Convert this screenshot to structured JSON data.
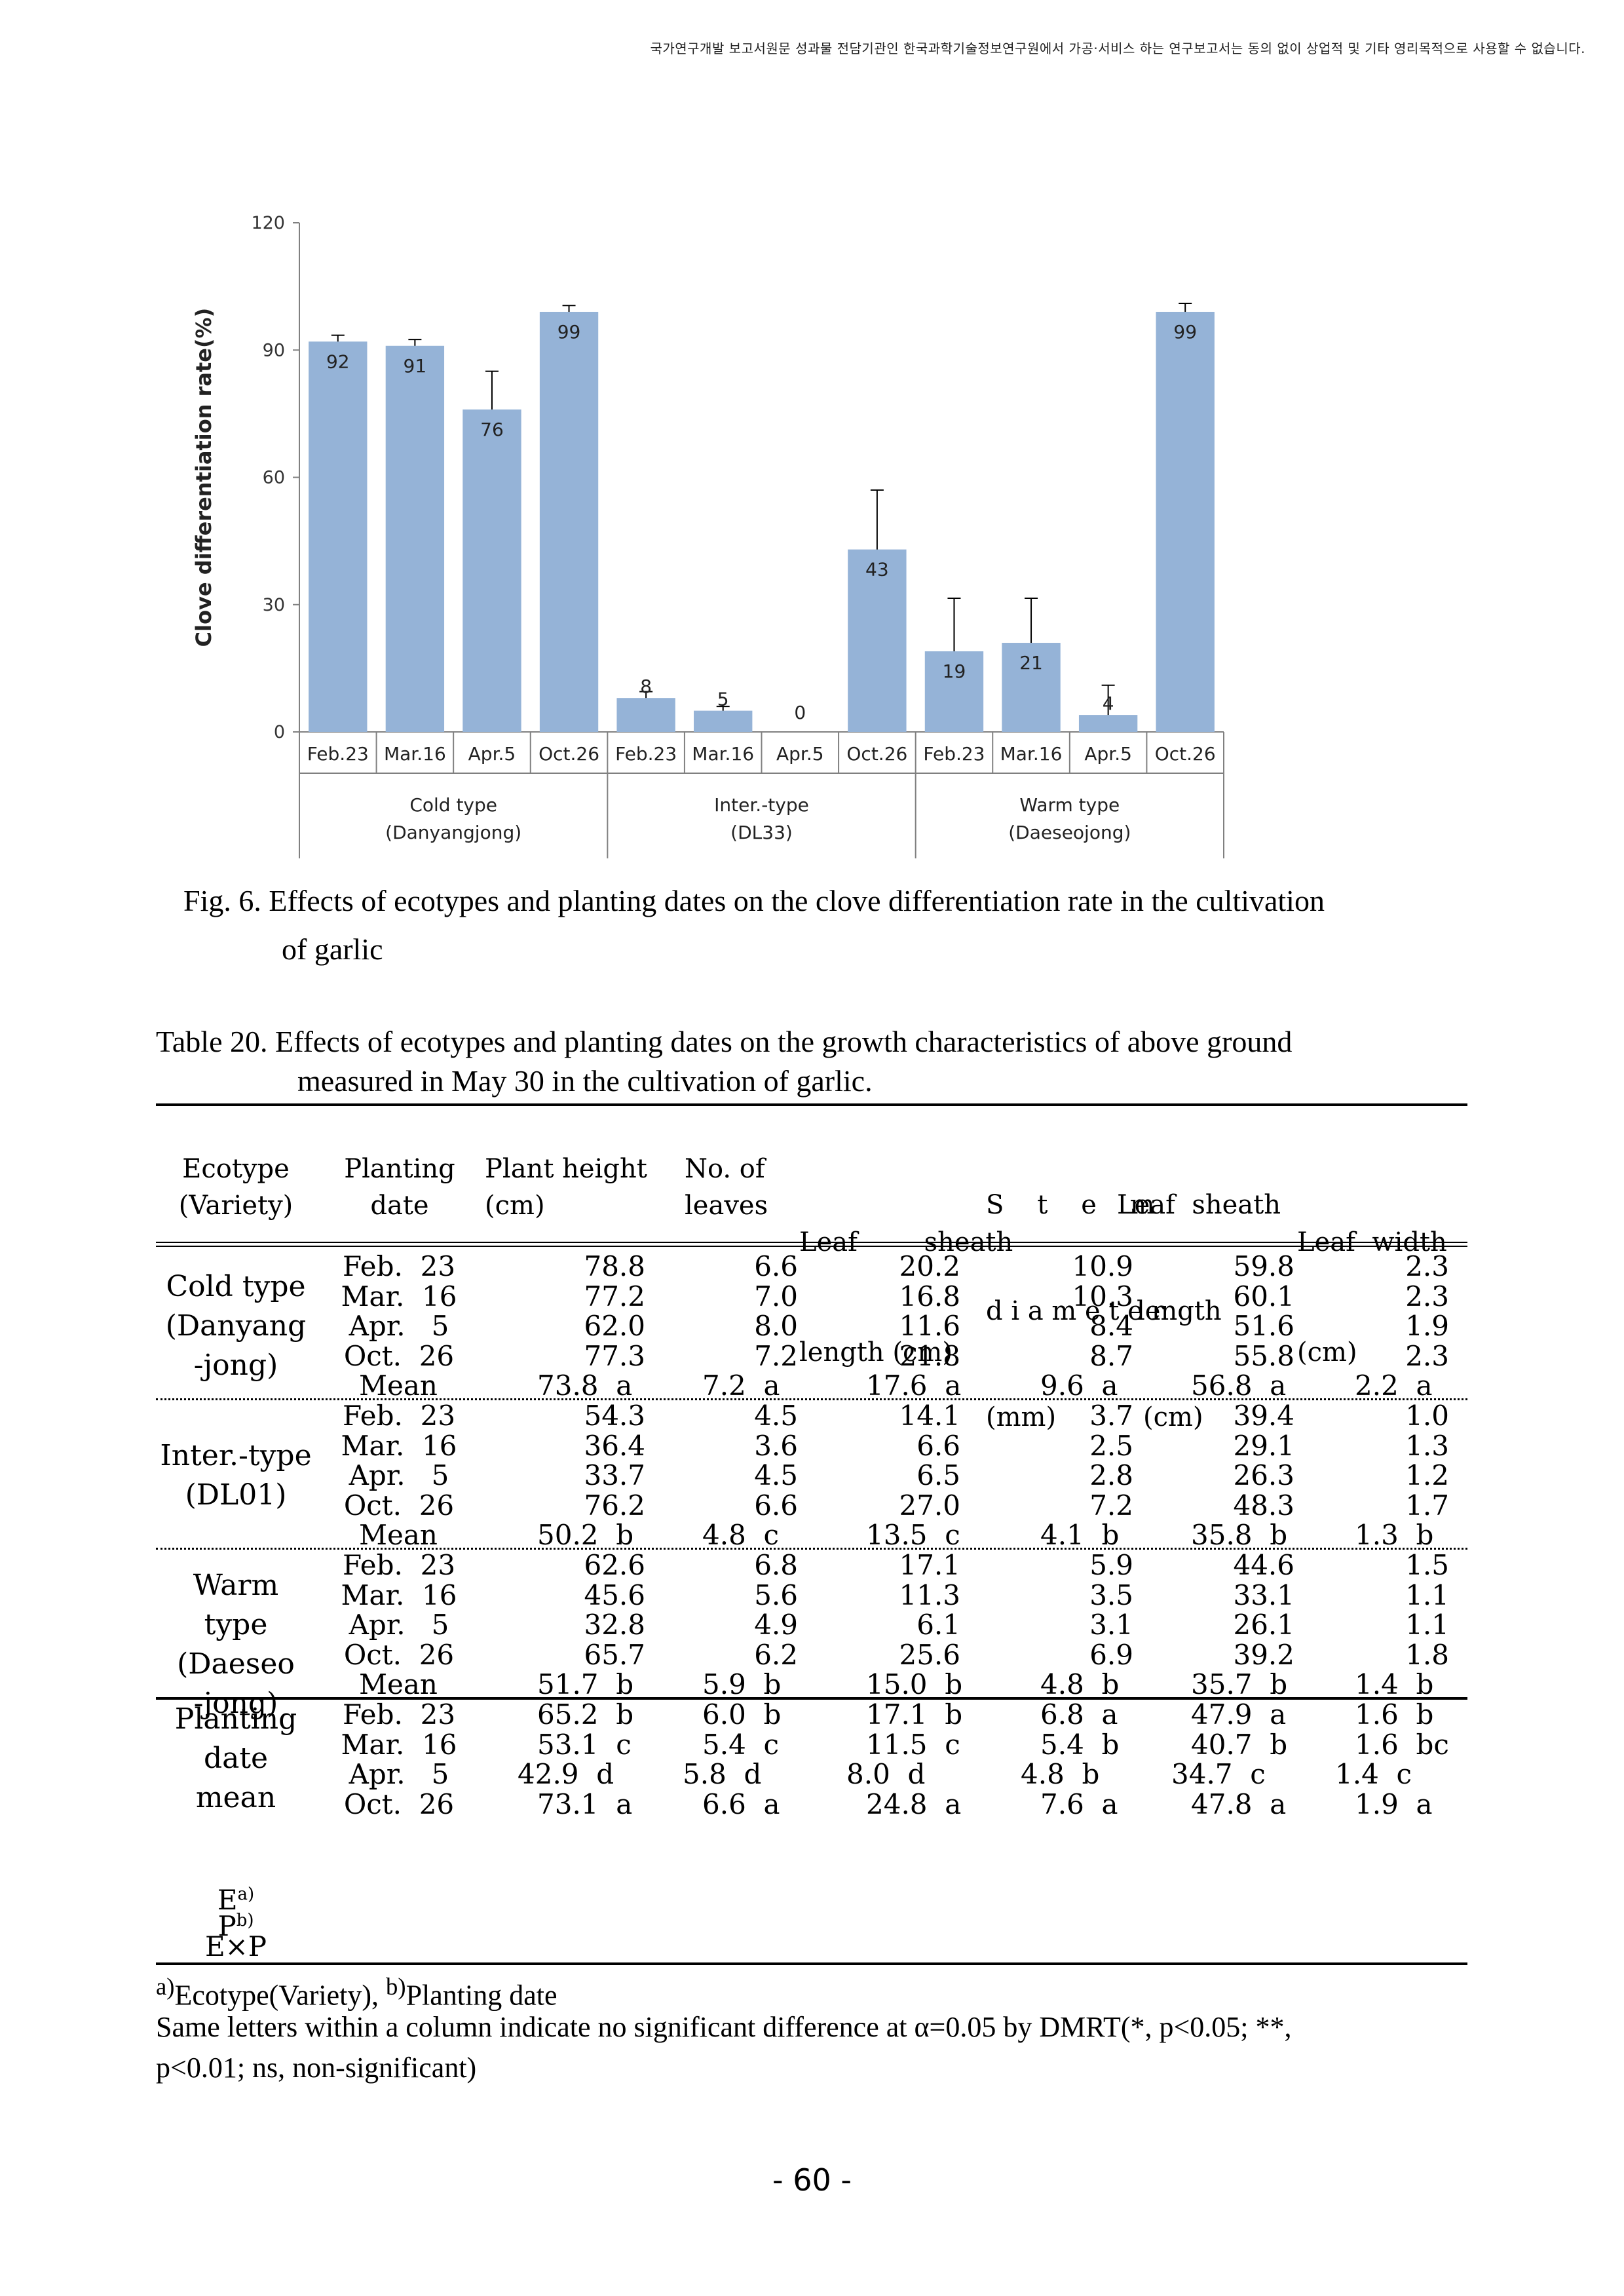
{
  "header_notice": "국가연구개발 보고서원문 성과물 전담기관인 한국과학기술정보연구원에서 가공·서비스 하는 연구보고서는 동의 없이 상업적 및 기타 영리목적으로 사용할 수 없습니다.",
  "figure": {
    "caption_line1": "Fig. 6. Effects of ecotypes and planting dates on the clove differentiation rate  in the cultivation",
    "caption_line2": "of garlic"
  },
  "chart_data": {
    "type": "bar",
    "ylabel": "Clove differentiation rate(%)",
    "ylim": [
      0,
      120
    ],
    "yticks": [
      0,
      30,
      60,
      90,
      120
    ],
    "bar_color": "#95b3d7",
    "categories": [
      "Feb.23",
      "Mar.16",
      "Apr.5",
      "Oct.26",
      "Feb.23",
      "Mar.16",
      "Apr.5",
      "Oct.26",
      "Feb.23",
      "Mar.16",
      "Apr.5",
      "Oct.26"
    ],
    "values": [
      92,
      91,
      76,
      99,
      8,
      5,
      0,
      43,
      19,
      21,
      4,
      99
    ],
    "value_labels": [
      "92",
      "91",
      "76",
      "99",
      "8",
      "5",
      "0",
      "43",
      "19",
      "21",
      "4",
      "99"
    ],
    "error_upper": [
      93.5,
      92.5,
      85,
      100.5,
      9.5,
      6,
      0,
      57,
      31.5,
      31.5,
      11,
      101
    ],
    "groups": [
      {
        "line1": "Cold type",
        "line2": "(Danyangjong)"
      },
      {
        "line1": "Inter.-type",
        "line2": "(DL33)"
      },
      {
        "line1": "Warm type",
        "line2": "(Daeseojong)"
      }
    ]
  },
  "table": {
    "title_line1": "Table 20. Effects of ecotypes and planting dates on the growth characteristics of above ground",
    "title_line2": "measured in May 30 in the cultivation of garlic.",
    "headers": {
      "ecotype_1": "Ecotype",
      "ecotype_2": "(Variety)",
      "planting_1": "Planting",
      "planting_2": "date",
      "height_1": "Plant height",
      "height_2": "(cm)",
      "leaves_1": "No. of",
      "leaves_2": "leaves",
      "leaflen_1": "Leaf        sheath",
      "leaflen_2": "length (cm)",
      "stem_1": "S    t    e    m",
      "stem_2": "d i a m e t e r",
      "stem_3": "(mm)",
      "sheath_1": "Leaf  sheath",
      "sheath_2": "length",
      "sheath_3": "(cm)",
      "width_1": "Leaf  width",
      "width_2": "(cm)"
    },
    "groups": [
      {
        "name_lines": [
          "Cold  type",
          "(Danyang",
          "-jong)"
        ],
        "rows": [
          {
            "date": "Feb.  23",
            "height": "78.8",
            "leaves": "6.6",
            "leaf_len": "20.2",
            "stem": "10.9",
            "sheath": "59.8",
            "width": "2.3"
          },
          {
            "date": "Mar.  16",
            "height": "77.2",
            "leaves": "7.0",
            "leaf_len": "16.8",
            "stem": "10.3",
            "sheath": "60.1",
            "width": "2.3"
          },
          {
            "date": "Apr.   5",
            "height": "62.0",
            "leaves": "8.0",
            "leaf_len": "11.6",
            "stem": "8.4",
            "sheath": "51.6",
            "width": "1.9"
          },
          {
            "date": "Oct.  26",
            "height": "77.3",
            "leaves": "7.2",
            "leaf_len": "21.8",
            "stem": "8.7",
            "sheath": "55.8",
            "width": "2.3"
          }
        ],
        "mean": {
          "label": "Mean",
          "height": "73.8  a",
          "leaves": "7.2  a",
          "leaf_len": "17.6  a",
          "stem": "9.6  a",
          "sheath": "56.8  a",
          "width": "2.2  a"
        }
      },
      {
        "name_lines": [
          "Inter.-type",
          "(DL01)"
        ],
        "rows": [
          {
            "date": "Feb.  23",
            "height": "54.3",
            "leaves": "4.5",
            "leaf_len": "14.1",
            "stem": "3.7",
            "sheath": "39.4",
            "width": "1.0"
          },
          {
            "date": "Mar.  16",
            "height": "36.4",
            "leaves": "3.6",
            "leaf_len": "6.6",
            "stem": "2.5",
            "sheath": "29.1",
            "width": "1.3"
          },
          {
            "date": "Apr.   5",
            "height": "33.7",
            "leaves": "4.5",
            "leaf_len": "6.5",
            "stem": "2.8",
            "sheath": "26.3",
            "width": "1.2"
          },
          {
            "date": "Oct.  26",
            "height": "76.2",
            "leaves": "6.6",
            "leaf_len": "27.0",
            "stem": "7.2",
            "sheath": "48.3",
            "width": "1.7"
          }
        ],
        "mean": {
          "label": "Mean",
          "height": "50.2  b",
          "leaves": "4.8  c",
          "leaf_len": "13.5  c",
          "stem": "4.1  b",
          "sheath": "35.8  b",
          "width": "1.3  b"
        }
      },
      {
        "name_lines": [
          "Warm type",
          "(Daeseo",
          "-jong)"
        ],
        "rows": [
          {
            "date": "Feb.  23",
            "height": "62.6",
            "leaves": "6.8",
            "leaf_len": "17.1",
            "stem": "5.9",
            "sheath": "44.6",
            "width": "1.5"
          },
          {
            "date": "Mar.  16",
            "height": "45.6",
            "leaves": "5.6",
            "leaf_len": "11.3",
            "stem": "3.5",
            "sheath": "33.1",
            "width": "1.1"
          },
          {
            "date": "Apr.   5",
            "height": "32.8",
            "leaves": "4.9",
            "leaf_len": "6.1",
            "stem": "3.1",
            "sheath": "26.1",
            "width": "1.1"
          },
          {
            "date": "Oct.  26",
            "height": "65.7",
            "leaves": "6.2",
            "leaf_len": "25.6",
            "stem": "6.9",
            "sheath": "39.2",
            "width": "1.8"
          }
        ],
        "mean": {
          "label": "Mean",
          "height": "51.7  b",
          "leaves": "5.9  b",
          "leaf_len": "15.0  b",
          "stem": "4.8  b",
          "sheath": "35.7  b",
          "width": "1.4  b"
        }
      }
    ],
    "planting_mean": {
      "name_lines": [
        "Planting",
        "date",
        "mean"
      ],
      "rows": [
        {
          "date": "Feb.  23",
          "height": "65.2  b",
          "leaves": "6.0  b",
          "leaf_len": "17.1  b",
          "stem": "6.8  a",
          "sheath": "47.9  a",
          "width": "1.6  b"
        },
        {
          "date": "Mar.  16",
          "height": "53.1  c",
          "leaves": "5.4  c",
          "leaf_len": "11.5  c",
          "stem": "5.4  b",
          "sheath": "40.7  b",
          "width": "1.6  bc"
        },
        {
          "date": "Apr.   5",
          "height": "42.9  d",
          "leaves": "5.8  d",
          "leaf_len": "8.0  d",
          "stem": "4.8  b",
          "sheath": "34.7  c",
          "width": "1.4  c"
        },
        {
          "date": "Oct.  26",
          "height": "73.1  a",
          "leaves": "6.6  a",
          "leaf_len": "24.8  a",
          "stem": "7.6  a",
          "sheath": "47.8  a",
          "width": "1.9  a"
        }
      ]
    },
    "stats_labels": {
      "e": "E",
      "e_sup": "a)",
      "p": "P",
      "p_sup": "b)",
      "exp": "E×P"
    },
    "footnote_line1_sup_a": "a)",
    "footnote_line1_a": "Ecotype(Variety),  ",
    "footnote_line1_sup_b": "b)",
    "footnote_line1_b": "Planting  date",
    "footnote_line2": "Same letters within a column indicate no significant difference at α=0.05 by DMRT(*, p<0.05; **,",
    "footnote_line3": "p<0.01; ns, non-significant)"
  },
  "page_number": "- 60 -"
}
